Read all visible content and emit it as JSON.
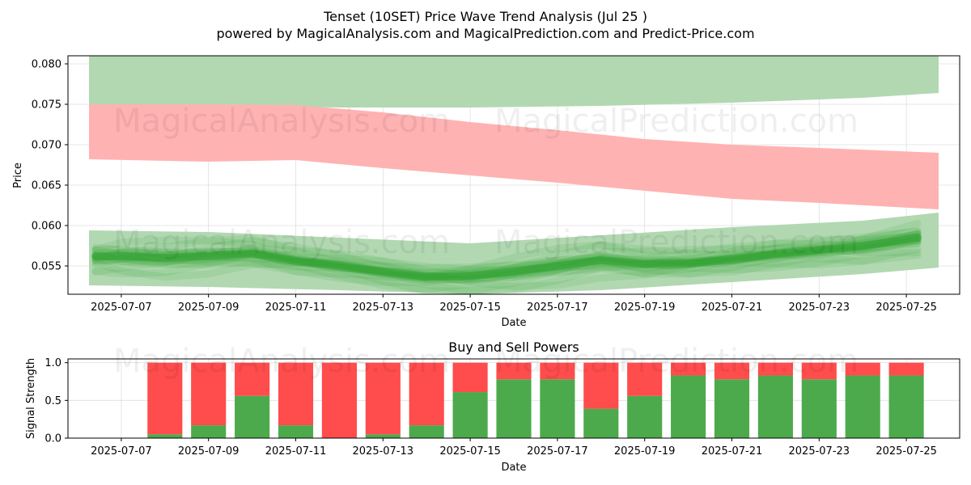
{
  "figure": {
    "title": "Tenset (10SET) Price Wave Trend Analysis (Jul 25 )",
    "subtitle": "powered by MagicalAnalysis.com and MagicalPrediction.com and Predict-Price.com",
    "watermarks": [
      "MagicalAnalysis.com",
      "MagicalPrediction.com"
    ]
  },
  "colors": {
    "green_band": "#b2d8b2",
    "red_band": "#ffb2b2",
    "wave": "#2ca02c",
    "buy": "#4caa4c",
    "sell": "#ff4c4c"
  },
  "chart_data": [
    {
      "type": "area",
      "title": "",
      "xlabel": "Date",
      "ylabel": "Price",
      "xlim": [
        "2025-07-06",
        "2025-07-26"
      ],
      "ylim": [
        0.0515,
        0.081
      ],
      "grid": true,
      "x_ticks": [
        "2025-07-07",
        "2025-07-09",
        "2025-07-11",
        "2025-07-13",
        "2025-07-15",
        "2025-07-17",
        "2025-07-19",
        "2025-07-21",
        "2025-07-23",
        "2025-07-25"
      ],
      "y_ticks": [
        0.055,
        0.06,
        0.065,
        0.07,
        0.075,
        0.08
      ],
      "y_tick_labels": [
        "0.055",
        "0.060",
        "0.065",
        "0.070",
        "0.075",
        "0.080"
      ],
      "bands": [
        {
          "color": "green",
          "x": [
            "2025-07-06",
            "2025-07-09",
            "2025-07-12",
            "2025-07-15",
            "2025-07-18",
            "2025-07-21",
            "2025-07-24",
            "2025-07-26"
          ],
          "upper": [
            0.081,
            0.081,
            0.081,
            0.081,
            0.081,
            0.081,
            0.081,
            0.081
          ],
          "lower": [
            0.075,
            0.0748,
            0.0746,
            0.0746,
            0.0748,
            0.0752,
            0.0758,
            0.0764
          ]
        },
        {
          "color": "red",
          "x": [
            "2025-07-06",
            "2025-07-09",
            "2025-07-11",
            "2025-07-13",
            "2025-07-15",
            "2025-07-17",
            "2025-07-19",
            "2025-07-21",
            "2025-07-23",
            "2025-07-26"
          ],
          "upper": [
            0.075,
            0.075,
            0.0749,
            0.074,
            0.0728,
            0.0718,
            0.0707,
            0.07,
            0.0696,
            0.069
          ],
          "lower": [
            0.0682,
            0.0679,
            0.0681,
            0.0671,
            0.0662,
            0.0653,
            0.0643,
            0.0633,
            0.0628,
            0.062
          ]
        },
        {
          "color": "green",
          "x": [
            "2025-07-06",
            "2025-07-09",
            "2025-07-12",
            "2025-07-15",
            "2025-07-18",
            "2025-07-21",
            "2025-07-24",
            "2025-07-26"
          ],
          "upper": [
            0.0594,
            0.0592,
            0.0585,
            0.0578,
            0.0588,
            0.0598,
            0.0606,
            0.0616
          ],
          "lower": [
            0.0526,
            0.0524,
            0.052,
            0.0515,
            0.052,
            0.053,
            0.054,
            0.0548
          ]
        }
      ],
      "wave_center": {
        "x": [
          "2025-07-06",
          "2025-07-07",
          "2025-07-08",
          "2025-07-09",
          "2025-07-10",
          "2025-07-11",
          "2025-07-12",
          "2025-07-13",
          "2025-07-14",
          "2025-07-15",
          "2025-07-16",
          "2025-07-17",
          "2025-07-18",
          "2025-07-19",
          "2025-07-20",
          "2025-07-21",
          "2025-07-22",
          "2025-07-23",
          "2025-07-24",
          "2025-07-25"
        ],
        "y": [
          0.0562,
          0.0562,
          0.056,
          0.0562,
          0.0565,
          0.0556,
          0.055,
          0.0543,
          0.0537,
          0.0538,
          0.0543,
          0.055,
          0.0557,
          0.0552,
          0.0553,
          0.0558,
          0.0565,
          0.057,
          0.0575,
          0.0585
        ]
      }
    },
    {
      "type": "bar",
      "title": "Buy and Sell Powers",
      "xlabel": "Date",
      "ylabel": "Signal Strength",
      "xlim": [
        "2025-07-06",
        "2025-07-26"
      ],
      "ylim": [
        0,
        1.05
      ],
      "grid": true,
      "x_ticks": [
        "2025-07-07",
        "2025-07-09",
        "2025-07-11",
        "2025-07-13",
        "2025-07-15",
        "2025-07-17",
        "2025-07-19",
        "2025-07-21",
        "2025-07-23",
        "2025-07-25"
      ],
      "y_ticks": [
        0.0,
        0.5,
        1.0
      ],
      "y_tick_labels": [
        "0.0",
        "0.5",
        "1.0"
      ],
      "categories": [
        "2025-07-08",
        "2025-07-09",
        "2025-07-10",
        "2025-07-11",
        "2025-07-12",
        "2025-07-13",
        "2025-07-14",
        "2025-07-15",
        "2025-07-16",
        "2025-07-17",
        "2025-07-18",
        "2025-07-19",
        "2025-07-20",
        "2025-07-21",
        "2025-07-22",
        "2025-07-23",
        "2025-07-24",
        "2025-07-25"
      ],
      "series": [
        {
          "values": [
            0.05,
            0.17,
            0.56,
            0.17,
            0.0,
            0.05,
            0.17,
            0.61,
            0.78,
            0.78,
            0.39,
            0.56,
            0.83,
            0.78,
            0.83,
            0.78,
            0.83,
            0.83
          ]
        },
        {
          "values": [
            0.95,
            0.83,
            0.44,
            0.83,
            1.0,
            0.95,
            0.83,
            0.39,
            0.22,
            0.22,
            0.61,
            0.44,
            0.17,
            0.22,
            0.17,
            0.22,
            0.17,
            0.17
          ]
        }
      ]
    }
  ]
}
